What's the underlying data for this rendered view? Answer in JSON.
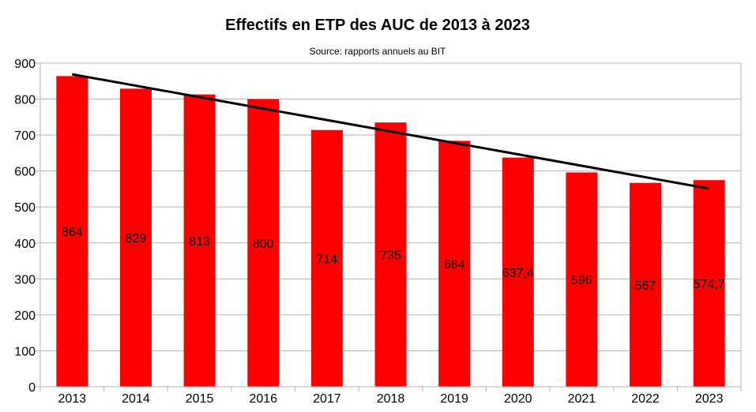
{
  "chart_data": {
    "type": "bar",
    "title": "Effectifs en ETP des AUC de 2013 à 2023",
    "subtitle": "Source: rapports annuels au BIT",
    "xlabel": "",
    "ylabel": "",
    "categories": [
      "2013",
      "2014",
      "2015",
      "2016",
      "2017",
      "2018",
      "2019",
      "2020",
      "2021",
      "2022",
      "2023"
    ],
    "values": [
      864,
      829,
      813,
      800,
      714,
      735,
      684,
      637.4,
      596,
      567,
      574.7
    ],
    "data_labels": [
      "864",
      "829",
      "813",
      "800",
      "714",
      "735",
      "684",
      "637,4",
      "596",
      "567",
      "574,7"
    ],
    "ylim": [
      0,
      900
    ],
    "yticks": [
      0,
      100,
      200,
      300,
      400,
      500,
      600,
      700,
      800,
      900
    ],
    "trendline": {
      "type": "linear",
      "start": 869,
      "end": 551
    },
    "grid": true,
    "legend": "none",
    "colors": {
      "bar": "#ff0000",
      "trendline": "#000000",
      "grid": "#b3b3b3"
    }
  }
}
